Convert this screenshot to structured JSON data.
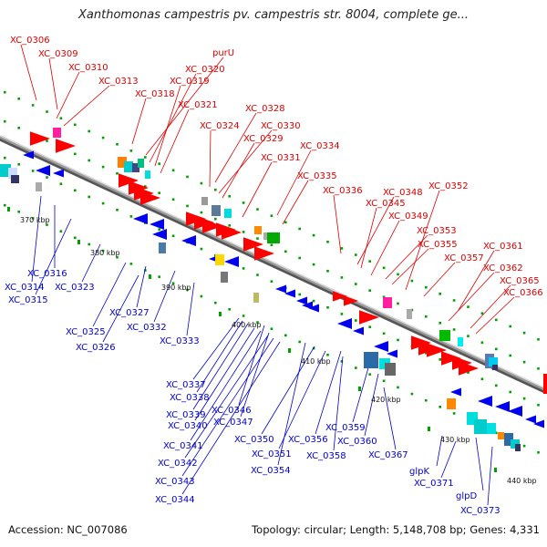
{
  "title": "Xanthomonas campestris pv. campestris str. 8004, complete ge...",
  "footer": {
    "accession": "Accession: NC_007086",
    "stats": "Topology: circular; Length: 5,148,708 bp; Genes: 4,331"
  },
  "colors": {
    "top_strand_label": "#dd0000",
    "bottom_strand_label": "#0000cc",
    "forward_gene": "#ff0000",
    "reverse_gene": "#0000ee",
    "axis": "#808080",
    "tick_marks": "#00a000"
  },
  "axis": {
    "ticks": [
      "370 kbp",
      "380 kbp",
      "390 kbp",
      "400 kbp",
      "410 kbp",
      "420 kbp",
      "430 kbp",
      "440 kbp"
    ]
  },
  "top_labels": [
    "XC_0306",
    "XC_0309",
    "XC_0310",
    "XC_0313",
    "XC_0318",
    "purU",
    "XC_0320",
    "XC_0319",
    "XC_0321",
    "XC_0328",
    "XC_0324",
    "XC_0330",
    "XC_0329",
    "XC_0334",
    "XC_0331",
    "XC_0335",
    "XC_0336",
    "XC_0348",
    "XC_0352",
    "XC_0345",
    "XC_0349",
    "XC_0353",
    "XC_0355",
    "XC_0361",
    "XC_0357",
    "XC_0362",
    "XC_0365",
    "XC_0366"
  ],
  "bottom_labels": [
    "XC_0316",
    "XC_0314",
    "XC_0323",
    "XC_0315",
    "XC_0327",
    "XC_0325",
    "XC_0332",
    "XC_0326",
    "XC_0333",
    "XC_0337",
    "XC_0338",
    "XC_0339",
    "XC_0346",
    "XC_0340",
    "XC_0347",
    "XC_0341",
    "XC_0350",
    "XC_0356",
    "XC_0359",
    "XC_0342",
    "XC_0351",
    "XC_0358",
    "XC_0360",
    "XC_0367",
    "XC_0354",
    "XC_0343",
    "XC_0344",
    "glpK",
    "XC_0371",
    "glpD",
    "XC_0373"
  ]
}
